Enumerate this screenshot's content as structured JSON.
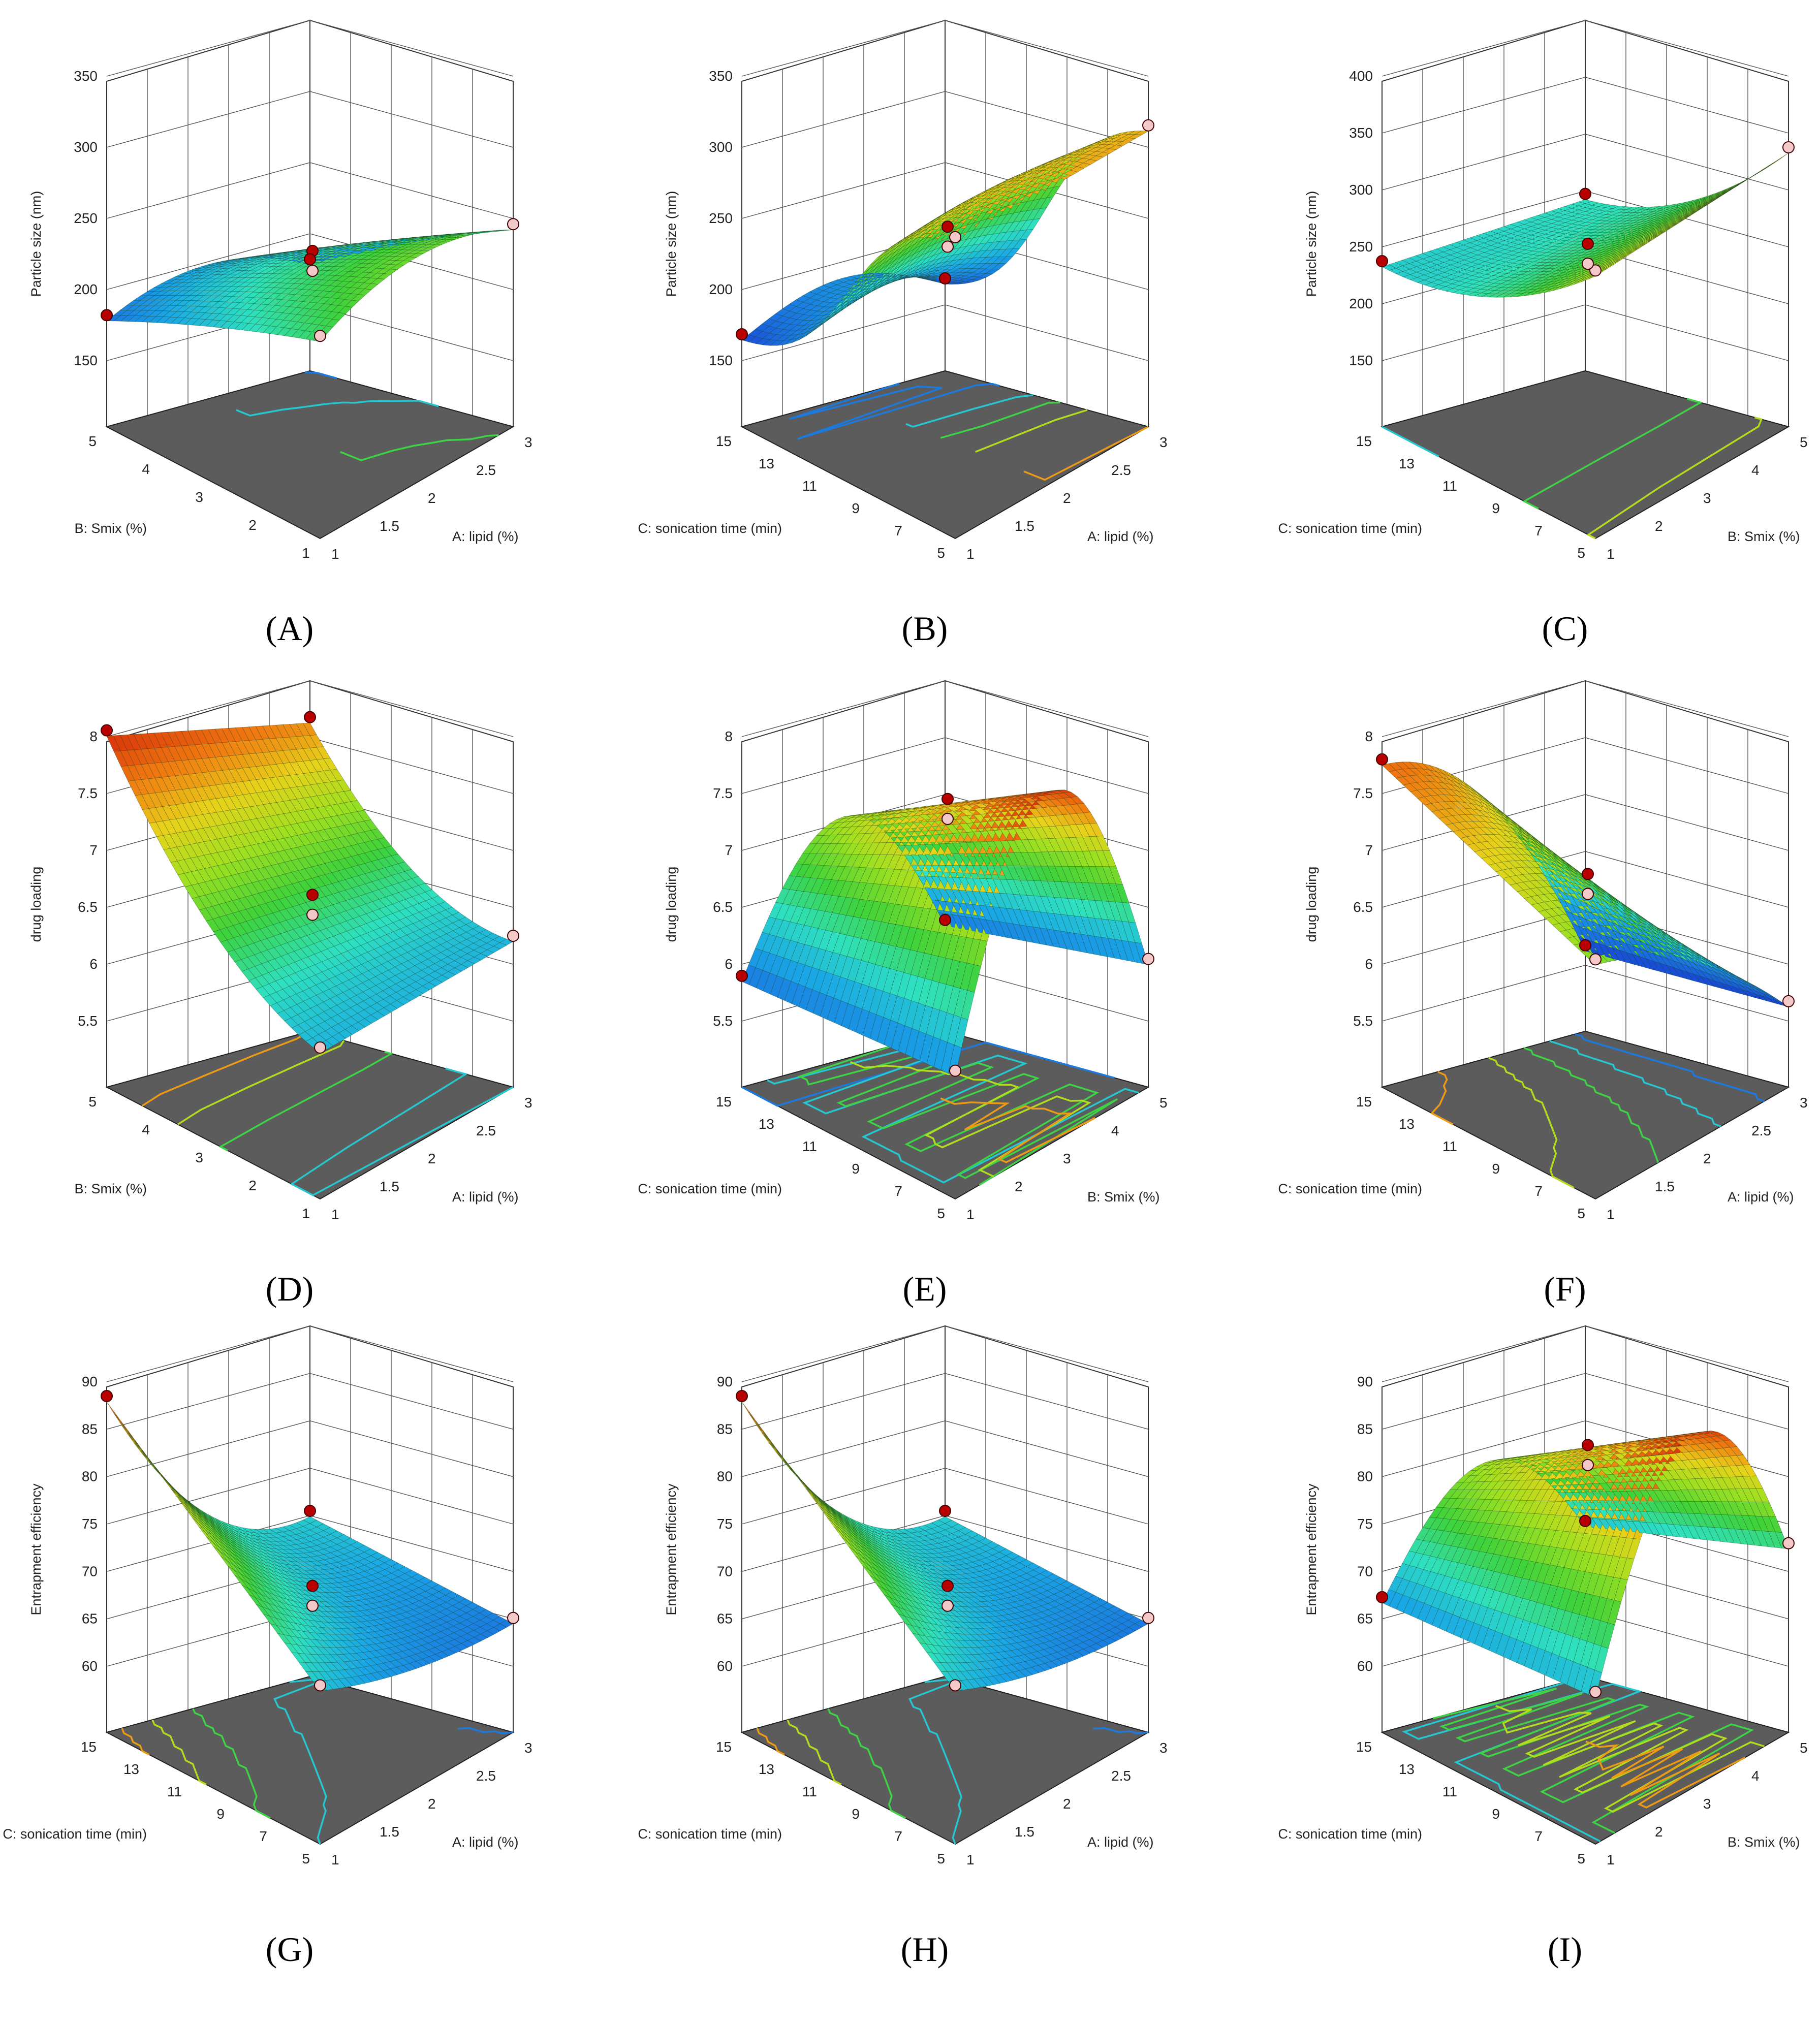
{
  "chart_data": [
    {
      "type": "surface3d",
      "panel_label": "(A)",
      "zlabel": "Particle size (nm)",
      "zticks": [
        "150",
        "200",
        "250",
        "300",
        "350"
      ],
      "zlim": [
        150,
        350
      ],
      "x_axis": {
        "label": "A: lipid (%)",
        "ticks": [
          "1",
          "1.5",
          "2",
          "2.5",
          "3"
        ],
        "range": [
          1,
          3
        ]
      },
      "y_axis": {
        "label": "B: Smix  (%)",
        "ticks": [
          "1",
          "2",
          "3",
          "4",
          "5"
        ],
        "range": [
          1,
          5
        ]
      },
      "surface": {
        "min": 175,
        "max": 260,
        "shape": "saddle, maximum near high lipid"
      },
      "colormap": [
        "#1520c8",
        "#1aa7e6",
        "#2ee0c0",
        "#3ed23a",
        "#e8d21a",
        "#f07a10",
        "#d8300a"
      ]
    },
    {
      "type": "surface3d",
      "panel_label": "(B)",
      "zlabel": "Particle size (nm)",
      "zticks": [
        "150",
        "200",
        "250",
        "300",
        "350"
      ],
      "zlim": [
        150,
        350
      ],
      "x_axis": {
        "label": "A: lipid (%)",
        "ticks": [
          "1",
          "1.5",
          "2",
          "2.5",
          "3"
        ],
        "range": [
          1,
          3
        ]
      },
      "y_axis": {
        "label": "C: sonication time (min)",
        "ticks": [
          "5",
          "7",
          "9",
          "11",
          "13",
          "15"
        ],
        "range": [
          5,
          15
        ]
      },
      "surface": {
        "min": 160,
        "max": 320,
        "shape": "S-shaped rise with lipid"
      }
    },
    {
      "type": "surface3d",
      "panel_label": "(C)",
      "zlabel": "Particle size (nm)",
      "zticks": [
        "150",
        "200",
        "250",
        "300",
        "350",
        "400"
      ],
      "zlim": [
        150,
        400
      ],
      "x_axis": {
        "label": "B: Smix  (%)",
        "ticks": [
          "1",
          "2",
          "3",
          "4",
          "5"
        ],
        "range": [
          1,
          5
        ]
      },
      "y_axis": {
        "label": "C: sonication time (min)",
        "ticks": [
          "5",
          "7",
          "9",
          "11",
          "13",
          "15"
        ],
        "range": [
          5,
          15
        ]
      },
      "surface": {
        "min": 225,
        "max": 330,
        "shape": "increases with Smix"
      }
    },
    {
      "type": "surface3d",
      "panel_label": "(D)",
      "zlabel": "drug loading",
      "zticks": [
        "5.5",
        "6",
        "6.5",
        "7",
        "7.5",
        "8"
      ],
      "zlim": [
        5.5,
        8
      ],
      "x_axis": {
        "label": "A: lipid (%)",
        "ticks": [
          "1",
          "1.5",
          "2",
          "2.5",
          "3"
        ],
        "range": [
          1,
          3
        ]
      },
      "y_axis": {
        "label": "B: Smix  (%)",
        "ticks": [
          "1",
          "2",
          "3",
          "4",
          "5"
        ],
        "range": [
          1,
          5
        ]
      },
      "surface": {
        "min": 6.3,
        "max": 7.9,
        "shape": "saddle, high at low lipid"
      }
    },
    {
      "type": "surface3d",
      "panel_label": "(E)",
      "zlabel": "drug loading",
      "zticks": [
        "5.5",
        "6",
        "6.5",
        "7",
        "7.5",
        "8"
      ],
      "zlim": [
        5.5,
        8
      ],
      "x_axis": {
        "label": "B: Smix  (%)",
        "ticks": [
          "1",
          "2",
          "3",
          "4",
          "5"
        ],
        "range": [
          1,
          5
        ]
      },
      "y_axis": {
        "label": "C: sonication time (min)",
        "ticks": [
          "5",
          "7",
          "9",
          "11",
          "13",
          "15"
        ],
        "range": [
          5,
          15
        ]
      },
      "surface": {
        "min": 5.3,
        "max": 8.0,
        "shape": "dome, peak at mid time"
      }
    },
    {
      "type": "surface3d",
      "panel_label": "(F)",
      "zlabel": "drug loading",
      "zticks": [
        "5.5",
        "6",
        "6.5",
        "7",
        "7.5",
        "8"
      ],
      "zlim": [
        5.5,
        8
      ],
      "x_axis": {
        "label": "A: lipid (%)",
        "ticks": [
          "1",
          "1.5",
          "2",
          "2.5",
          "3"
        ],
        "range": [
          1,
          3
        ]
      },
      "y_axis": {
        "label": "C: sonication time (min)",
        "ticks": [
          "5",
          "7",
          "9",
          "11",
          "13",
          "15"
        ],
        "range": [
          5,
          15
        ]
      },
      "surface": {
        "min": 5.6,
        "max": 7.6,
        "shape": "saddle, low at low lipid short time"
      }
    },
    {
      "type": "surface3d",
      "panel_label": "(G)",
      "zlabel": "Entrapment efficiency",
      "zticks": [
        "60",
        "65",
        "70",
        "75",
        "80",
        "85",
        "90"
      ],
      "zlim": [
        55,
        90
      ],
      "x_axis": {
        "label": "A: lipid (%)",
        "ticks": [
          "1",
          "1.5",
          "2",
          "2.5",
          "3"
        ],
        "range": [
          1,
          3
        ]
      },
      "y_axis": {
        "label": "C: sonication time (min)",
        "ticks": [
          "5",
          "7",
          "9",
          "11",
          "13",
          "15"
        ],
        "range": [
          5,
          15
        ]
      },
      "surface": {
        "min": 57,
        "max": 84,
        "shape": "saddle, high at long time low lipid"
      }
    },
    {
      "type": "surface3d",
      "panel_label": "(H)",
      "zlabel": "Entrapment efficiency",
      "zticks": [
        "60",
        "65",
        "70",
        "75",
        "80",
        "85",
        "90"
      ],
      "zlim": [
        55,
        90
      ],
      "x_axis": {
        "label": "A: lipid (%)",
        "ticks": [
          "1",
          "1.5",
          "2",
          "2.5",
          "3"
        ],
        "range": [
          1,
          3
        ]
      },
      "y_axis": {
        "label": "C: sonication time (min)",
        "ticks": [
          "5",
          "7",
          "9",
          "11",
          "13",
          "15"
        ],
        "range": [
          5,
          15
        ]
      },
      "surface": {
        "min": 57,
        "max": 84,
        "shape": "saddle, high at long time low lipid"
      }
    },
    {
      "type": "surface3d",
      "panel_label": "(I)",
      "zlabel": "Entrapment efficiency",
      "zticks": [
        "60",
        "65",
        "70",
        "75",
        "80",
        "85",
        "90"
      ],
      "zlim": [
        55,
        90
      ],
      "x_axis": {
        "label": "B: Smix  (%)",
        "ticks": [
          "1",
          "2",
          "3",
          "4",
          "5"
        ],
        "range": [
          1,
          5
        ]
      },
      "y_axis": {
        "label": "C: sonication time (min)",
        "ticks": [
          "5",
          "7",
          "9",
          "11",
          "13",
          "15"
        ],
        "range": [
          5,
          15
        ]
      },
      "surface": {
        "min": 58,
        "max": 88,
        "shape": "dome rising toward mid time"
      }
    }
  ]
}
